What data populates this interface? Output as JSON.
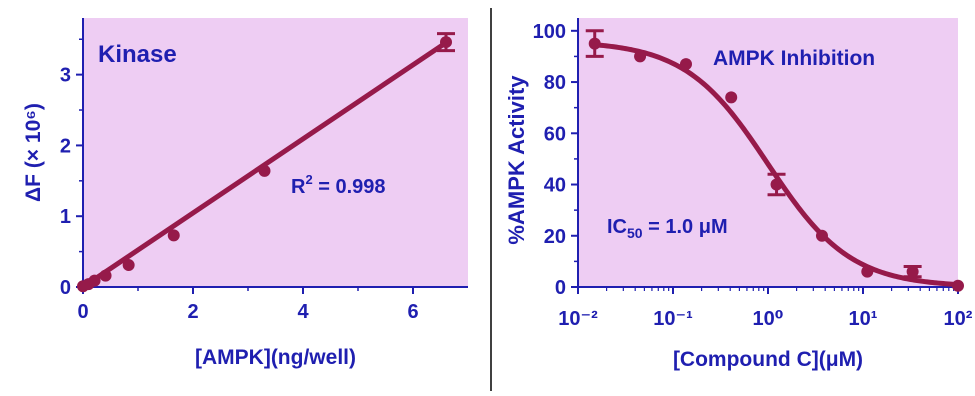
{
  "colors": {
    "plot_bg": "#eecdf3",
    "axis": "#1f1fb0",
    "text": "#1f1fb0",
    "series": "#961a4a",
    "divider": "#000000"
  },
  "chart_data": [
    {
      "type": "scatter",
      "title": "Kinase",
      "xlabel": "[AMPK](ng/well)",
      "ylabel": "ΔF (× 10⁶)",
      "annotation": "R² = 0.998",
      "xlim": [
        0,
        7
      ],
      "ylim": [
        0,
        3.8
      ],
      "x_ticks": [
        0,
        2,
        4,
        6
      ],
      "y_ticks": [
        0,
        1,
        2,
        3
      ],
      "grid": false,
      "legend": "none",
      "series": [
        {
          "x": [
            0,
            0.1,
            0.21,
            0.41,
            0.83,
            1.65,
            3.3,
            6.6
          ],
          "y": [
            0.01,
            0.04,
            0.09,
            0.16,
            0.31,
            0.73,
            1.64,
            3.46
          ],
          "error": [
            0,
            0,
            0,
            0,
            0,
            0,
            0,
            0.12
          ]
        }
      ],
      "fit": {
        "type": "linear",
        "slope": 0.523,
        "intercept": 0.0,
        "x_range": [
          0,
          6.6
        ]
      }
    },
    {
      "type": "scatter",
      "title": "AMPK Inhibition",
      "xlabel": "[Compound C](μM)",
      "ylabel": "%AMPK Activity",
      "annotation": "IC₅₀ = 1.0 μM",
      "x_scale": "log",
      "xlim": [
        0.01,
        100
      ],
      "ylim": [
        0,
        105
      ],
      "x_ticks": [
        0.01,
        0.1,
        1,
        10,
        100
      ],
      "x_tick_labels": [
        "10⁻²",
        "10⁻¹",
        "10⁰",
        "10¹",
        "10²"
      ],
      "y_ticks": [
        0,
        20,
        40,
        60,
        80,
        100
      ],
      "grid": false,
      "legend": "none",
      "series": [
        {
          "x": [
            0.015,
            0.045,
            0.137,
            0.41,
            1.23,
            3.7,
            11.1,
            33.3,
            100
          ],
          "y": [
            95,
            90,
            87,
            74,
            40,
            20,
            6,
            6,
            0.5
          ],
          "error": [
            5,
            0,
            0,
            0,
            4,
            0,
            0,
            2,
            0
          ]
        }
      ],
      "fit": {
        "type": "sigmoid",
        "top": 96,
        "bottom": 0,
        "ic50": 1.0,
        "hill": 1.0,
        "x_range": [
          0.015,
          100
        ]
      }
    }
  ]
}
